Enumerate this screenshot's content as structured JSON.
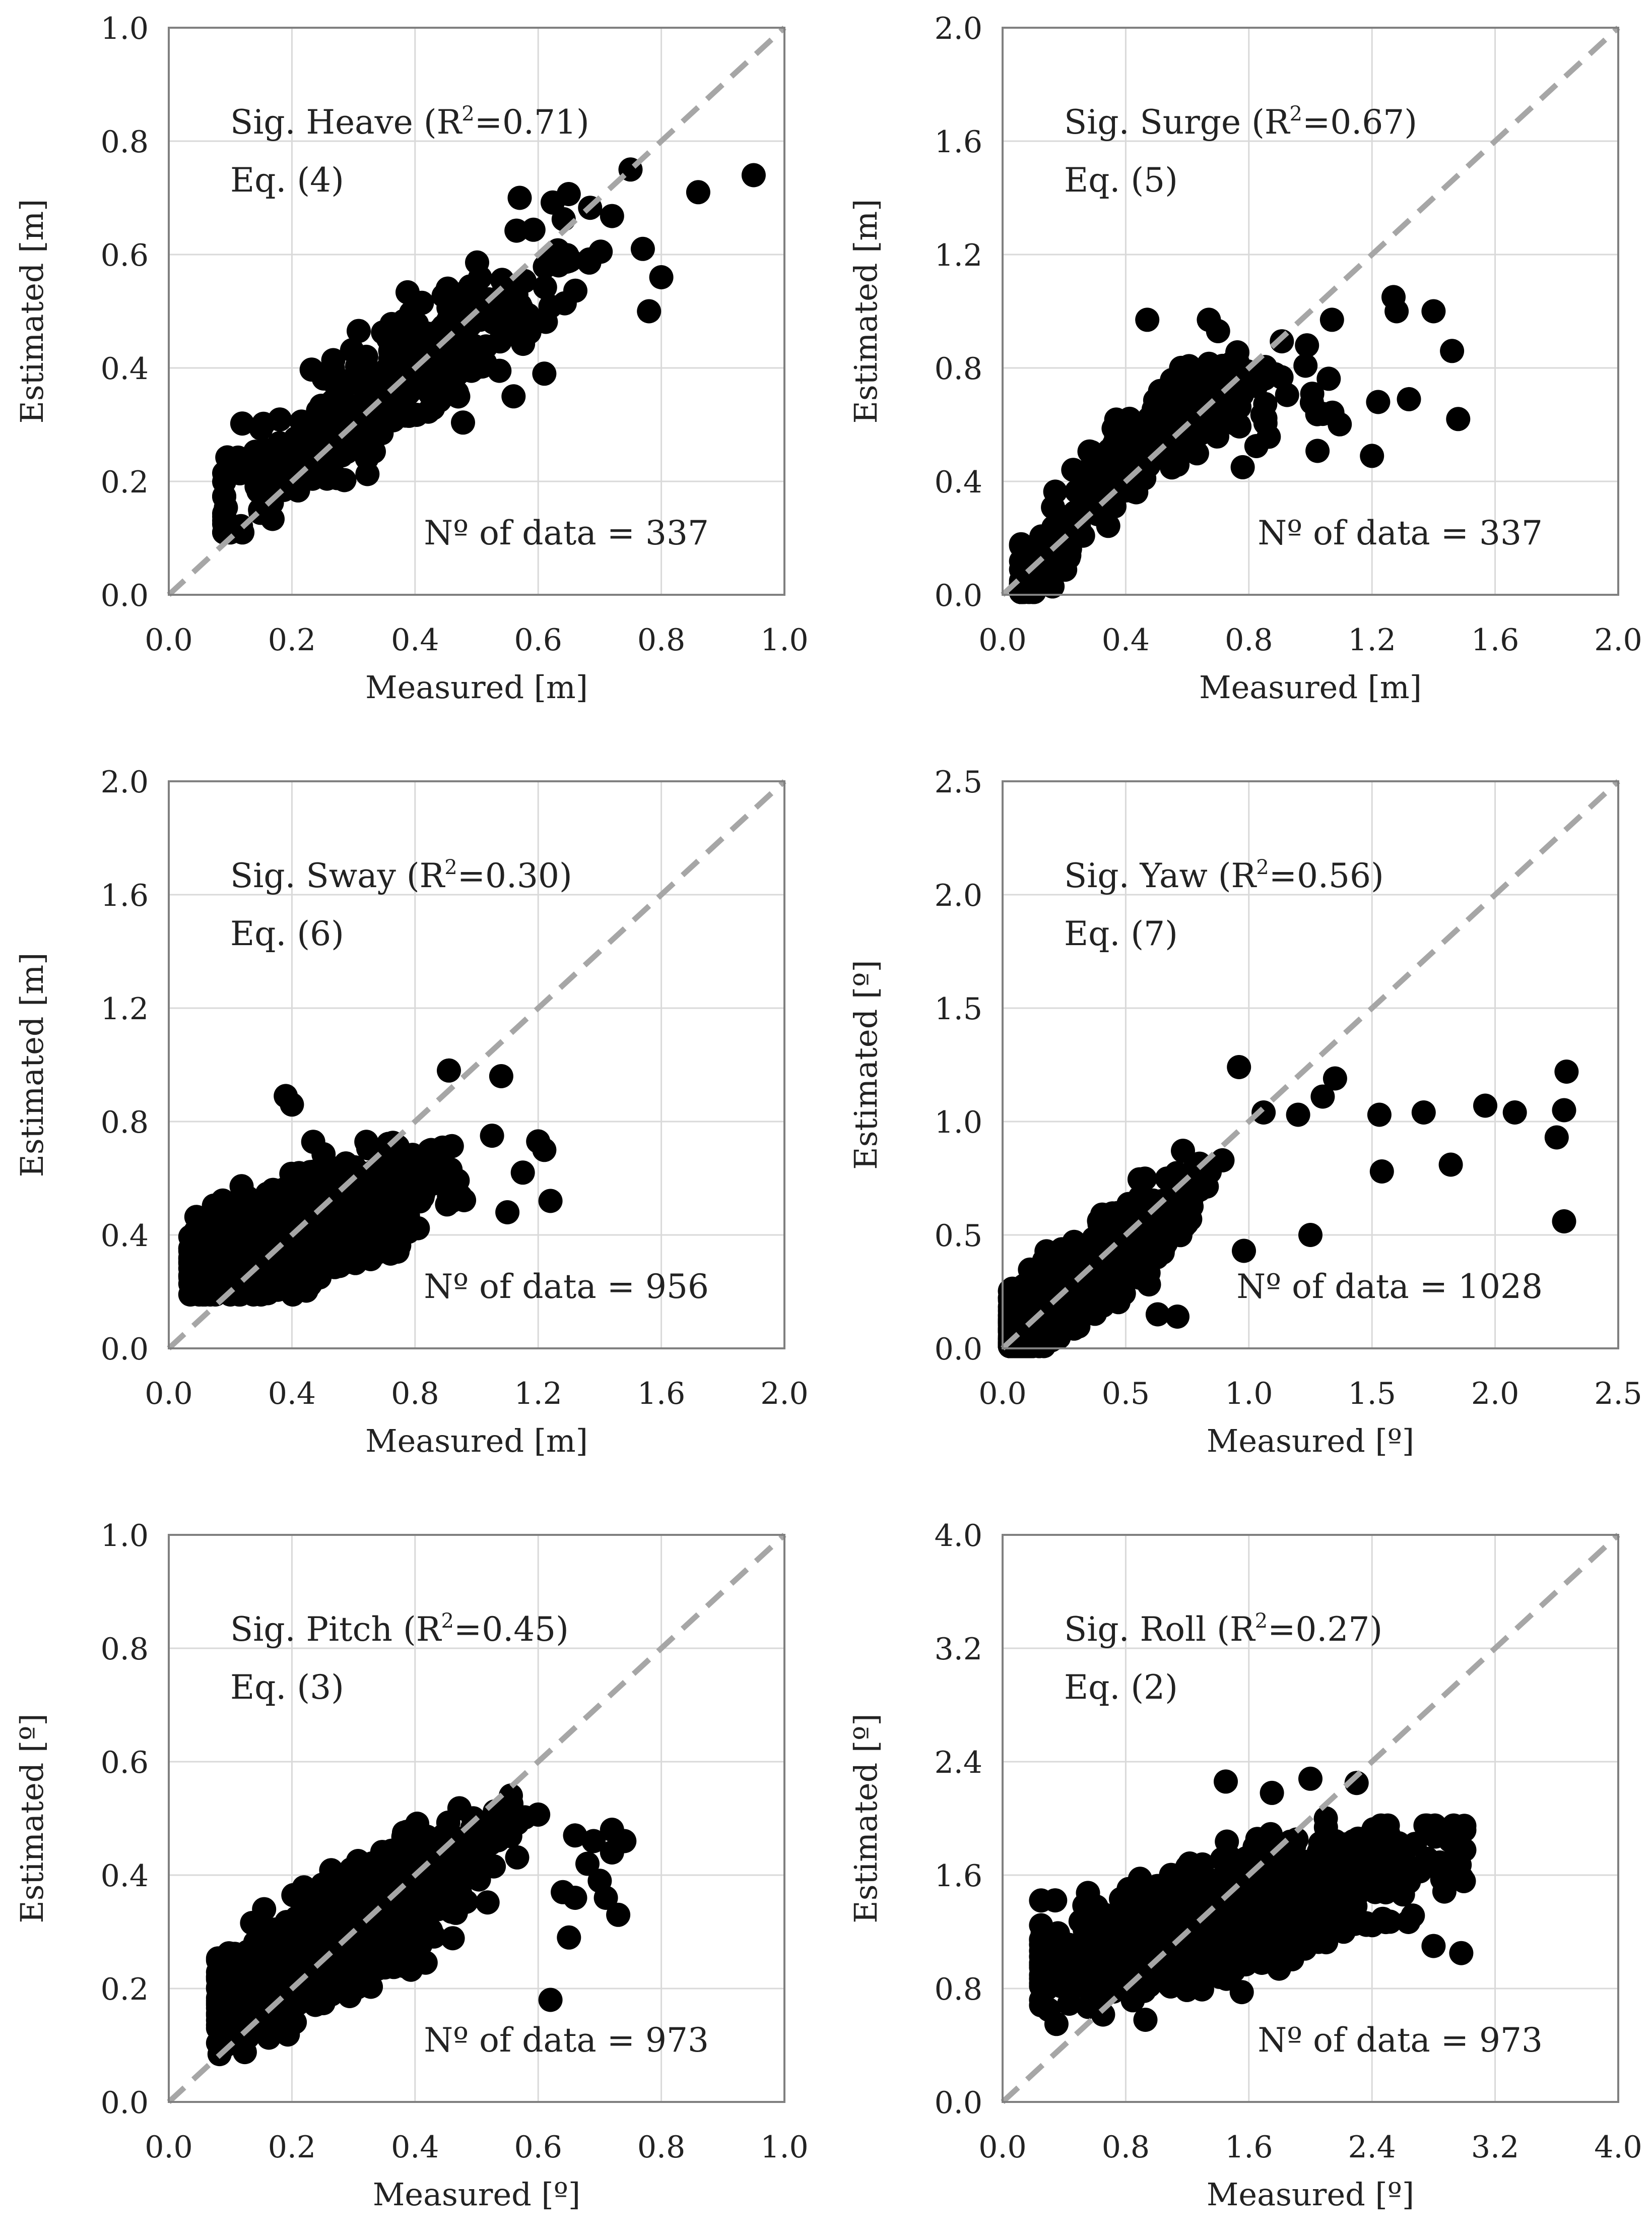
{
  "figure": {
    "name": "Measured vs Estimated significant motions"
  },
  "colors": {
    "points": "#000000",
    "reference_line": "#a6a6a6",
    "gridlines": "#d9d9d9",
    "frame": "#808080"
  },
  "chart_data": [
    {
      "id": "heave",
      "type": "scatter",
      "title": "Sig. Heave (R",
      "title_sup": "2",
      "title_tail": "=0.71)",
      "equation": "Eq. (4)",
      "count_label": "Nº of data = 337",
      "xlabel": "Measured [m]",
      "ylabel": "Estimated [m]",
      "xlim": [
        0,
        1.0
      ],
      "ylim": [
        0,
        1.0
      ],
      "xticks": [
        "0.0",
        "0.2",
        "0.4",
        "0.6",
        "0.8",
        "1.0"
      ],
      "yticks": [
        "0.0",
        "0.2",
        "0.4",
        "0.6",
        "0.8",
        "1.0"
      ],
      "reference_line": "y = x",
      "cluster": {
        "n": 337,
        "seed": 11,
        "x_mean": 0.37,
        "x_sd": 0.15,
        "x_min": 0.09,
        "x_max": 0.72,
        "intercept": 0.09,
        "slope": 0.78,
        "curve": 0.0,
        "noise": 0.055,
        "y_min": 0.11,
        "y_max": 0.71
      },
      "points": [
        [
          0.95,
          0.74
        ],
        [
          0.86,
          0.71
        ],
        [
          0.75,
          0.75
        ],
        [
          0.8,
          0.56
        ],
        [
          0.78,
          0.5
        ],
        [
          0.77,
          0.61
        ],
        [
          0.61,
          0.39
        ],
        [
          0.57,
          0.7
        ],
        [
          0.56,
          0.35
        ]
      ]
    },
    {
      "id": "surge",
      "type": "scatter",
      "title": "Sig. Surge (R",
      "title_sup": "2",
      "title_tail": "=0.67)",
      "equation": "Eq. (5)",
      "count_label": "Nº of data = 337",
      "xlabel": "Measured [m]",
      "ylabel": "Estimated [m]",
      "xlim": [
        0,
        2.0
      ],
      "ylim": [
        0,
        2.0
      ],
      "xticks": [
        "0.0",
        "0.4",
        "0.8",
        "1.2",
        "1.6",
        "2.0"
      ],
      "yticks": [
        "0.0",
        "0.4",
        "0.8",
        "1.2",
        "1.6",
        "2.0"
      ],
      "reference_line": "y = x",
      "cluster": {
        "n": 337,
        "seed": 23,
        "x_mean": 0.42,
        "x_sd": 0.28,
        "x_min": 0.06,
        "x_max": 1.25,
        "intercept": -0.12,
        "slope": 2.0,
        "curve": -1.2,
        "noise": 0.08,
        "y_min": 0.01,
        "y_max": 0.99
      },
      "points": [
        [
          1.27,
          1.05
        ],
        [
          1.28,
          1.0
        ],
        [
          1.4,
          1.0
        ],
        [
          1.46,
          0.86
        ],
        [
          1.48,
          0.62
        ],
        [
          1.32,
          0.69
        ],
        [
          1.2,
          0.49
        ],
        [
          1.07,
          0.97
        ],
        [
          0.47,
          0.97
        ],
        [
          0.67,
          0.97
        ],
        [
          0.7,
          0.93
        ],
        [
          0.78,
          0.45
        ],
        [
          1.22,
          0.68
        ]
      ]
    },
    {
      "id": "sway",
      "type": "scatter",
      "title": "Sig. Sway (R",
      "title_sup": "2",
      "title_tail": "=0.30)",
      "equation": "Eq. (6)",
      "count_label": "Nº of data = 956",
      "xlabel": "Measured [m]",
      "ylabel": "Estimated [m]",
      "xlim": [
        0,
        2.0
      ],
      "ylim": [
        0,
        2.0
      ],
      "xticks": [
        "0.0",
        "0.4",
        "0.8",
        "1.2",
        "1.6",
        "2.0"
      ],
      "yticks": [
        "0.0",
        "0.4",
        "0.8",
        "1.2",
        "1.6",
        "2.0"
      ],
      "reference_line": "y = x",
      "cluster": {
        "n": 956,
        "seed": 37,
        "x_mean": 0.45,
        "x_sd": 0.19,
        "x_min": 0.07,
        "x_max": 1.2,
        "intercept": 0.26,
        "slope": 0.38,
        "curve": 0.0,
        "noise": 0.09,
        "y_min": 0.19,
        "y_max": 0.82
      },
      "points": [
        [
          0.91,
          0.98
        ],
        [
          1.08,
          0.96
        ],
        [
          1.24,
          0.52
        ],
        [
          1.2,
          0.73
        ],
        [
          1.22,
          0.7
        ],
        [
          1.1,
          0.48
        ],
        [
          0.38,
          0.89
        ],
        [
          0.4,
          0.86
        ],
        [
          1.05,
          0.75
        ],
        [
          1.15,
          0.62
        ]
      ]
    },
    {
      "id": "yaw",
      "type": "scatter",
      "title": "Sig. Yaw (R",
      "title_sup": "2",
      "title_tail": "=0.56)",
      "equation": "Eq. (7)",
      "count_label": "Nº of data = 1028",
      "xlabel": "Measured [º]",
      "ylabel": "Estimated [º]",
      "xlim": [
        0,
        2.5
      ],
      "ylim": [
        0,
        2.5
      ],
      "xticks": [
        "0.0",
        "0.5",
        "1.0",
        "1.5",
        "2.0",
        "2.5"
      ],
      "yticks": [
        "0.0",
        "0.5",
        "1.0",
        "1.5",
        "2.0",
        "2.5"
      ],
      "reference_line": "y = x",
      "cluster": {
        "n": 1028,
        "seed": 53,
        "x_mean": 0.3,
        "x_sd": 0.2,
        "x_min": 0.03,
        "x_max": 1.4,
        "intercept": 0.0,
        "slope": 1.05,
        "curve": -0.28,
        "noise": 0.09,
        "y_min": 0.01,
        "y_max": 1.2
      },
      "points": [
        [
          2.29,
          1.22
        ],
        [
          2.28,
          1.05
        ],
        [
          2.25,
          0.93
        ],
        [
          2.28,
          0.56
        ],
        [
          2.08,
          1.04
        ],
        [
          1.96,
          1.07
        ],
        [
          1.71,
          1.04
        ],
        [
          1.53,
          1.03
        ],
        [
          1.54,
          0.78
        ],
        [
          1.82,
          0.81
        ],
        [
          1.35,
          1.19
        ],
        [
          0.96,
          1.24
        ],
        [
          1.06,
          1.04
        ],
        [
          1.25,
          0.5
        ],
        [
          0.98,
          0.43
        ],
        [
          0.71,
          0.14
        ],
        [
          0.63,
          0.15
        ],
        [
          1.3,
          1.11
        ],
        [
          1.2,
          1.03
        ]
      ]
    },
    {
      "id": "pitch",
      "type": "scatter",
      "title": "Sig. Pitch (R",
      "title_sup": "2",
      "title_tail": "=0.45)",
      "equation": "Eq. (3)",
      "count_label": "Nº of data = 973",
      "xlabel": "Measured [º]",
      "ylabel": "Estimated [º]",
      "xlim": [
        0,
        1.0
      ],
      "ylim": [
        0,
        1.0
      ],
      "xticks": [
        "0.0",
        "0.2",
        "0.4",
        "0.6",
        "0.8",
        "1.0"
      ],
      "yticks": [
        "0.0",
        "0.2",
        "0.4",
        "0.6",
        "0.8",
        "1.0"
      ],
      "reference_line": "y = x",
      "cluster": {
        "n": 973,
        "seed": 71,
        "x_mean": 0.3,
        "x_sd": 0.11,
        "x_min": 0.08,
        "x_max": 0.6,
        "intercept": 0.12,
        "slope": 0.62,
        "curve": 0.0,
        "noise": 0.05,
        "y_min": 0.07,
        "y_max": 0.55
      },
      "points": [
        [
          0.72,
          0.48
        ],
        [
          0.74,
          0.46
        ],
        [
          0.66,
          0.47
        ],
        [
          0.69,
          0.46
        ],
        [
          0.68,
          0.42
        ],
        [
          0.65,
          0.29
        ],
        [
          0.62,
          0.18
        ],
        [
          0.71,
          0.36
        ],
        [
          0.73,
          0.33
        ],
        [
          0.64,
          0.37
        ],
        [
          0.7,
          0.39
        ],
        [
          0.72,
          0.44
        ],
        [
          0.66,
          0.36
        ]
      ]
    },
    {
      "id": "roll",
      "type": "scatter",
      "title": "Sig. Roll (R",
      "title_sup": "2",
      "title_tail": "=0.27)",
      "equation": "Eq. (2)",
      "count_label": "Nº of data = 973",
      "xlabel": "Measured [º]",
      "ylabel": "Estimated [º]",
      "xlim": [
        0,
        4.0
      ],
      "ylim": [
        0,
        4.0
      ],
      "xticks": [
        "0.0",
        "0.8",
        "1.6",
        "2.4",
        "3.2",
        "4.0"
      ],
      "yticks": [
        "0.0",
        "0.8",
        "1.6",
        "2.4",
        "3.2",
        "4.0"
      ],
      "reference_line": "y = x",
      "cluster": {
        "n": 973,
        "seed": 89,
        "x_mean": 1.45,
        "x_sd": 0.6,
        "x_min": 0.25,
        "x_max": 3.0,
        "intercept": 0.88,
        "slope": 0.3,
        "curve": 0.0,
        "noise": 0.2,
        "y_min": 0.55,
        "y_max": 1.95
      },
      "points": [
        [
          1.45,
          2.26
        ],
        [
          2.0,
          2.28
        ],
        [
          2.3,
          2.25
        ],
        [
          1.75,
          2.18
        ],
        [
          2.1,
          2.0
        ],
        [
          2.6,
          1.7
        ],
        [
          2.95,
          1.75
        ],
        [
          2.98,
          1.05
        ],
        [
          2.8,
          1.1
        ],
        [
          0.3,
          0.65
        ],
        [
          0.35,
          0.55
        ]
      ]
    }
  ]
}
